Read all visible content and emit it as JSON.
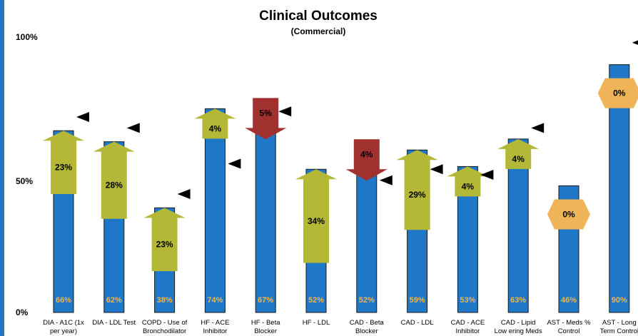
{
  "chart_data": {
    "type": "bar",
    "title": "Clinical Outcomes",
    "subtitle": "(Commercial)",
    "xlabel": "",
    "ylabel": "",
    "ylim": [
      0,
      100
    ],
    "y_ticks": [
      {
        "value": 0,
        "label": "0%"
      },
      {
        "value": 50,
        "label": "50%"
      },
      {
        "value": 100,
        "label": "100%"
      }
    ],
    "grid": false,
    "legend": "none",
    "categories": [
      [
        "DIA - A1C (1x",
        "per year)"
      ],
      [
        "DIA - LDL Test"
      ],
      [
        "COPD - Use of",
        "Bronchodilator"
      ],
      [
        "HF - ACE",
        "Inhibitor"
      ],
      [
        "HF - Beta",
        "Blocker"
      ],
      [
        "HF - LDL"
      ],
      [
        "CAD - Beta",
        "Blocker"
      ],
      [
        "CAD - LDL"
      ],
      [
        "CAD - ACE",
        "Inhibitor"
      ],
      [
        "CAD - Lipid",
        "Low ering Meds"
      ],
      [
        "AST - Meds %",
        "Control"
      ],
      [
        "AST - Long",
        "Term Control"
      ]
    ],
    "values": [
      66,
      62,
      38,
      74,
      67,
      52,
      52,
      59,
      53,
      63,
      46,
      90
    ],
    "value_labels": [
      "66%",
      "62%",
      "38%",
      "74%",
      "67%",
      "52%",
      "52%",
      "59%",
      "53%",
      "63%",
      "46%",
      "90%"
    ],
    "changes": [
      {
        "label": "23%",
        "direction": "up",
        "value": 23
      },
      {
        "label": "28%",
        "direction": "up",
        "value": 28
      },
      {
        "label": "23%",
        "direction": "up",
        "value": 23
      },
      {
        "label": "4%",
        "direction": "up",
        "value": 4
      },
      {
        "label": "5%",
        "direction": "down",
        "value": 5
      },
      {
        "label": "34%",
        "direction": "up",
        "value": 34
      },
      {
        "label": "4%",
        "direction": "down",
        "value": 4
      },
      {
        "label": "29%",
        "direction": "up",
        "value": 29
      },
      {
        "label": "4%",
        "direction": "up",
        "value": 4
      },
      {
        "label": "4%",
        "direction": "up",
        "value": 4
      },
      {
        "label": "0%",
        "direction": "flat",
        "value": 0
      },
      {
        "label": "0%",
        "direction": "flat",
        "value": 0
      }
    ],
    "benchmark_markers": [
      71,
      67,
      43,
      54,
      73,
      0,
      48,
      52,
      50,
      67,
      0,
      98
    ],
    "colors": {
      "bar": "#1f77c8",
      "bar_border": "#1a1a1a",
      "up_arrow": "#b5b836",
      "down_arrow": "#a1312f",
      "flat_arrow": "#f0b458",
      "value_label": "#f2b54a",
      "marker": "#000000"
    }
  }
}
